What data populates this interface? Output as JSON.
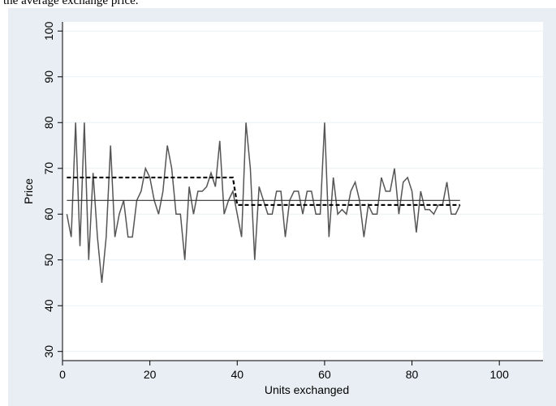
{
  "caption": "the average exchange price.",
  "chart_data": {
    "type": "line",
    "xlabel": "Units exchanged",
    "ylabel": "Price",
    "xlim": [
      0,
      110
    ],
    "ylim": [
      28,
      102
    ],
    "x_ticks": [
      0,
      20,
      40,
      60,
      80,
      100
    ],
    "y_ticks": [
      30,
      40,
      50,
      60,
      70,
      80,
      90,
      100
    ],
    "grid": "horizontal",
    "legend": "none",
    "colors": {
      "price_line": "#555555",
      "background": "#e8eef3",
      "plot_area": "#ffffff",
      "grid": "#eaf0f4"
    },
    "series": [
      {
        "style": "solid-thin-gray",
        "x": [
          1,
          2,
          3,
          4,
          5,
          6,
          7,
          8,
          9,
          10,
          11,
          12,
          13,
          14,
          15,
          16,
          17,
          18,
          19,
          20,
          21,
          22,
          23,
          24,
          25,
          26,
          27,
          28,
          29,
          30,
          31,
          32,
          33,
          34,
          35,
          36,
          37,
          38,
          39,
          40,
          41,
          42,
          43,
          44,
          45,
          46,
          47,
          48,
          49,
          50,
          51,
          52,
          53,
          54,
          55,
          56,
          57,
          58,
          59,
          60,
          61,
          62,
          63,
          64,
          65,
          66,
          67,
          68,
          69,
          70,
          71,
          72,
          73,
          74,
          75,
          76,
          77,
          78,
          79,
          80,
          81,
          82,
          83,
          84,
          85,
          86,
          87,
          88,
          89,
          90,
          91
        ],
        "y": [
          60,
          55,
          80,
          53,
          80,
          50,
          69,
          55,
          45,
          55,
          75,
          55,
          60,
          63,
          55,
          55,
          63,
          65,
          70,
          68,
          63,
          60,
          65,
          75,
          70,
          60,
          60,
          50,
          66,
          60,
          65,
          65,
          66,
          69,
          66,
          76,
          60,
          63,
          65,
          60,
          55,
          80,
          70,
          50,
          66,
          63,
          60,
          60,
          65,
          65,
          55,
          63,
          65,
          65,
          60,
          65,
          65,
          60,
          60,
          80,
          55,
          68,
          60,
          61,
          60,
          65,
          67,
          63,
          55,
          62,
          60,
          60,
          68,
          65,
          65,
          70,
          60,
          67,
          68,
          65,
          56,
          65,
          61,
          61,
          60,
          62,
          62,
          67,
          60,
          60,
          62
        ]
      },
      {
        "style": "solid-black",
        "x": [
          1,
          91
        ],
        "y": [
          63,
          63
        ]
      },
      {
        "style": "dashed-black",
        "x": [
          1,
          39,
          40,
          91
        ],
        "y": [
          68,
          68,
          62,
          62
        ]
      }
    ]
  }
}
